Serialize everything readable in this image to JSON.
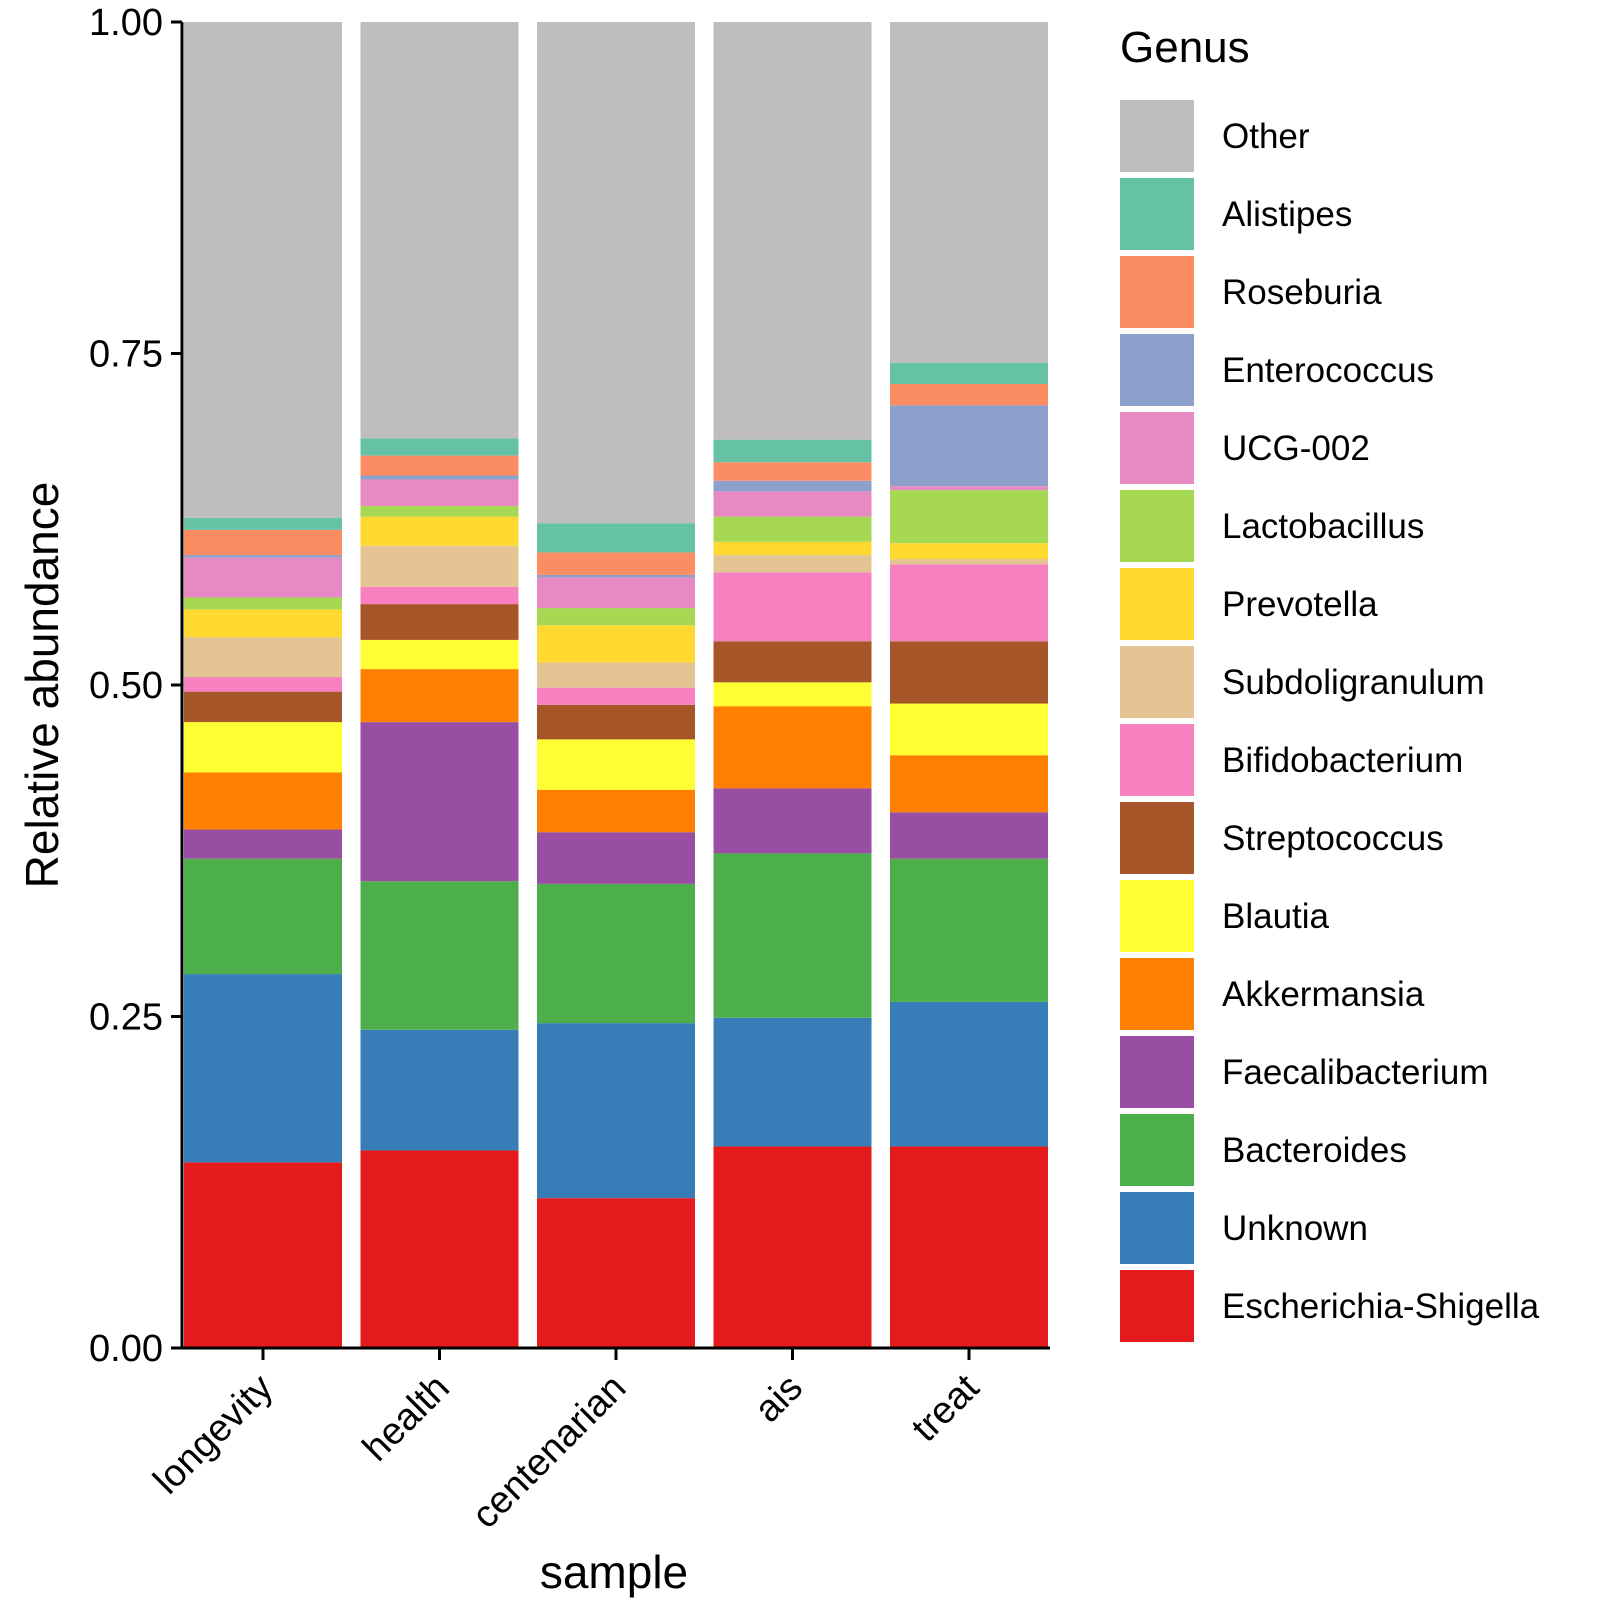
{
  "chart_data": {
    "type": "bar",
    "stacked": true,
    "title": "",
    "xlabel": "sample",
    "ylabel": "Relative abundance",
    "ylim": [
      0,
      1
    ],
    "yticks": [
      "0.00",
      "0.25",
      "0.50",
      "0.75",
      "1.00"
    ],
    "categories": [
      "longevity",
      "health",
      "centenarian",
      "ais",
      "treat"
    ],
    "legend_title": "Genus",
    "legend_position": "right",
    "series": [
      {
        "name": "Escherichia-Shigella",
        "color": "#E41A1C",
        "values": [
          0.14,
          0.149,
          0.113,
          0.152,
          0.152
        ]
      },
      {
        "name": "Unknown",
        "color": "#377EB8",
        "values": [
          0.142,
          0.091,
          0.132,
          0.097,
          0.109
        ]
      },
      {
        "name": "Bacteroides",
        "color": "#4DAF4A",
        "values": [
          0.087,
          0.112,
          0.105,
          0.124,
          0.108
        ]
      },
      {
        "name": "Faecalibacterium",
        "color": "#984EA3",
        "values": [
          0.022,
          0.12,
          0.039,
          0.049,
          0.035
        ]
      },
      {
        "name": "Akkermansia",
        "color": "#FF7F00",
        "values": [
          0.043,
          0.04,
          0.032,
          0.062,
          0.043
        ]
      },
      {
        "name": "Blautia",
        "color": "#FFFF33",
        "values": [
          0.038,
          0.022,
          0.038,
          0.018,
          0.039
        ]
      },
      {
        "name": "Streptococcus",
        "color": "#A65628",
        "values": [
          0.023,
          0.027,
          0.026,
          0.031,
          0.047
        ]
      },
      {
        "name": "Bifidobacterium",
        "color": "#F781BF",
        "values": [
          0.011,
          0.013,
          0.013,
          0.052,
          0.058
        ]
      },
      {
        "name": "Subdoligranulum",
        "color": "#E5C494",
        "values": [
          0.03,
          0.031,
          0.019,
          0.013,
          0.004
        ]
      },
      {
        "name": "Prevotella",
        "color": "#FFD92F",
        "values": [
          0.021,
          0.022,
          0.028,
          0.01,
          0.012
        ]
      },
      {
        "name": "Lactobacillus",
        "color": "#A6D854",
        "values": [
          0.009,
          0.008,
          0.013,
          0.019,
          0.04
        ]
      },
      {
        "name": "UCG-002",
        "color": "#E78AC3",
        "values": [
          0.03,
          0.02,
          0.023,
          0.019,
          0.003
        ]
      },
      {
        "name": "Enterococcus",
        "color": "#8DA0CB",
        "values": [
          0.002,
          0.003,
          0.002,
          0.008,
          0.061
        ]
      },
      {
        "name": "Roseburia",
        "color": "#FC8D62",
        "values": [
          0.019,
          0.015,
          0.017,
          0.014,
          0.016
        ]
      },
      {
        "name": "Alistipes",
        "color": "#66C2A5",
        "values": [
          0.009,
          0.013,
          0.022,
          0.017,
          0.016
        ]
      },
      {
        "name": "Other",
        "color": "#BEBEBE",
        "values": [
          0.374,
          0.314,
          0.378,
          0.315,
          0.257
        ]
      }
    ]
  }
}
